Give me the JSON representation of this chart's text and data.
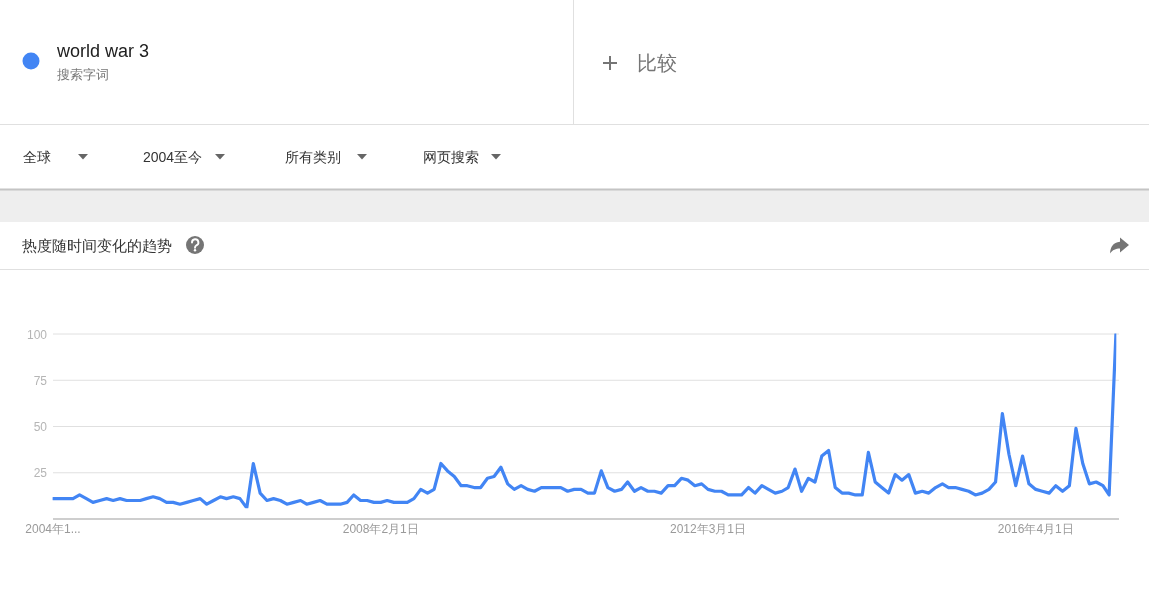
{
  "chart_data": {
    "type": "line",
    "title": "热度随时间变化的趋势",
    "annotations": [
      "搜索字词",
      "比较",
      "全球",
      "2004至今",
      "所有类别",
      "网页搜索"
    ],
    "x": [
      "2004-01",
      "2004-02",
      "2004-03",
      "2004-04",
      "2004-05",
      "2004-06",
      "2004-07",
      "2004-08",
      "2004-09",
      "2004-10",
      "2004-11",
      "2004-12",
      "2005-01",
      "2005-02",
      "2005-03",
      "2005-04",
      "2005-05",
      "2005-06",
      "2005-07",
      "2005-08",
      "2005-09",
      "2005-10",
      "2005-11",
      "2005-12",
      "2006-01",
      "2006-02",
      "2006-03",
      "2006-04",
      "2006-05",
      "2006-06",
      "2006-07",
      "2006-08",
      "2006-09",
      "2006-10",
      "2006-11",
      "2006-12",
      "2007-01",
      "2007-02",
      "2007-03",
      "2007-04",
      "2007-05",
      "2007-06",
      "2007-07",
      "2007-08",
      "2007-09",
      "2007-10",
      "2007-11",
      "2007-12",
      "2008-01",
      "2008-02",
      "2008-03",
      "2008-04",
      "2008-05",
      "2008-06",
      "2008-07",
      "2008-08",
      "2008-09",
      "2008-10",
      "2008-11",
      "2008-12",
      "2009-01",
      "2009-02",
      "2009-03",
      "2009-04",
      "2009-05",
      "2009-06",
      "2009-07",
      "2009-08",
      "2009-09",
      "2009-10",
      "2009-11",
      "2009-12",
      "2010-01",
      "2010-02",
      "2010-03",
      "2010-04",
      "2010-05",
      "2010-06",
      "2010-07",
      "2010-08",
      "2010-09",
      "2010-10",
      "2010-11",
      "2010-12",
      "2011-01",
      "2011-02",
      "2011-03",
      "2011-04",
      "2011-05",
      "2011-06",
      "2011-07",
      "2011-08",
      "2011-09",
      "2011-10",
      "2011-11",
      "2011-12",
      "2012-01",
      "2012-02",
      "2012-03",
      "2012-04",
      "2012-05",
      "2012-06",
      "2012-07",
      "2012-08",
      "2012-09",
      "2012-10",
      "2012-11",
      "2012-12",
      "2013-01",
      "2013-02",
      "2013-03",
      "2013-04",
      "2013-05",
      "2013-06",
      "2013-07",
      "2013-08",
      "2013-09",
      "2013-10",
      "2013-11",
      "2013-12",
      "2014-01",
      "2014-02",
      "2014-03",
      "2014-04",
      "2014-05",
      "2014-06",
      "2014-07",
      "2014-08",
      "2014-09",
      "2014-10",
      "2014-11",
      "2014-12",
      "2015-01",
      "2015-02",
      "2015-03",
      "2015-04",
      "2015-05",
      "2015-06",
      "2015-07",
      "2015-08",
      "2015-09",
      "2015-10",
      "2015-11",
      "2015-12",
      "2016-01",
      "2016-02",
      "2016-03",
      "2016-04",
      "2016-05",
      "2016-06",
      "2016-07",
      "2016-08",
      "2016-09",
      "2016-10",
      "2016-11",
      "2016-12",
      "2017-01",
      "2017-02",
      "2017-03",
      "2017-04"
    ],
    "series": [
      {
        "name": "world war 3",
        "color": "#4285f4",
        "values": [
          11,
          11,
          11,
          11,
          13,
          11,
          9,
          10,
          11,
          10,
          11,
          10,
          10,
          10,
          11,
          12,
          11,
          9,
          9,
          8,
          9,
          10,
          11,
          8,
          10,
          12,
          11,
          12,
          11,
          6,
          30,
          14,
          10,
          11,
          10,
          8,
          9,
          10,
          8,
          9,
          10,
          8,
          8,
          8,
          9,
          13,
          10,
          10,
          9,
          9,
          10,
          9,
          9,
          9,
          11,
          16,
          14,
          16,
          30,
          26,
          23,
          18,
          18,
          17,
          17,
          22,
          23,
          28,
          19,
          16,
          18,
          16,
          15,
          17,
          17,
          17,
          17,
          15,
          16,
          16,
          14,
          14,
          26,
          17,
          15,
          16,
          20,
          15,
          17,
          15,
          15,
          14,
          18,
          18,
          22,
          21,
          18,
          19,
          16,
          15,
          15,
          13,
          13,
          13,
          17,
          14,
          18,
          16,
          14,
          15,
          17,
          27,
          15,
          22,
          20,
          34,
          37,
          17,
          14,
          14,
          13,
          13,
          36,
          20,
          17,
          14,
          24,
          21,
          24,
          14,
          15,
          14,
          17,
          19,
          17,
          17,
          16,
          15,
          13,
          14,
          16,
          20,
          57,
          35,
          18,
          34,
          19,
          16,
          15,
          14,
          18,
          15,
          18,
          49,
          30,
          19,
          20,
          18,
          13,
          100
        ]
      }
    ],
    "xlim": [
      "2004-01-01",
      "2017-04-15"
    ],
    "xticks": [
      {
        "value": "2004-01-01",
        "label": "2004年1..."
      },
      {
        "value": "2008-02-01",
        "label": "2008年2月1日"
      },
      {
        "value": "2012-03-01",
        "label": "2012年3月1日"
      },
      {
        "value": "2016-04-01",
        "label": "2016年4月1日"
      }
    ],
    "ylim": [
      0,
      100
    ],
    "yticks": [
      25,
      50,
      75,
      100
    ],
    "grid": "y",
    "legend": "top left"
  }
}
